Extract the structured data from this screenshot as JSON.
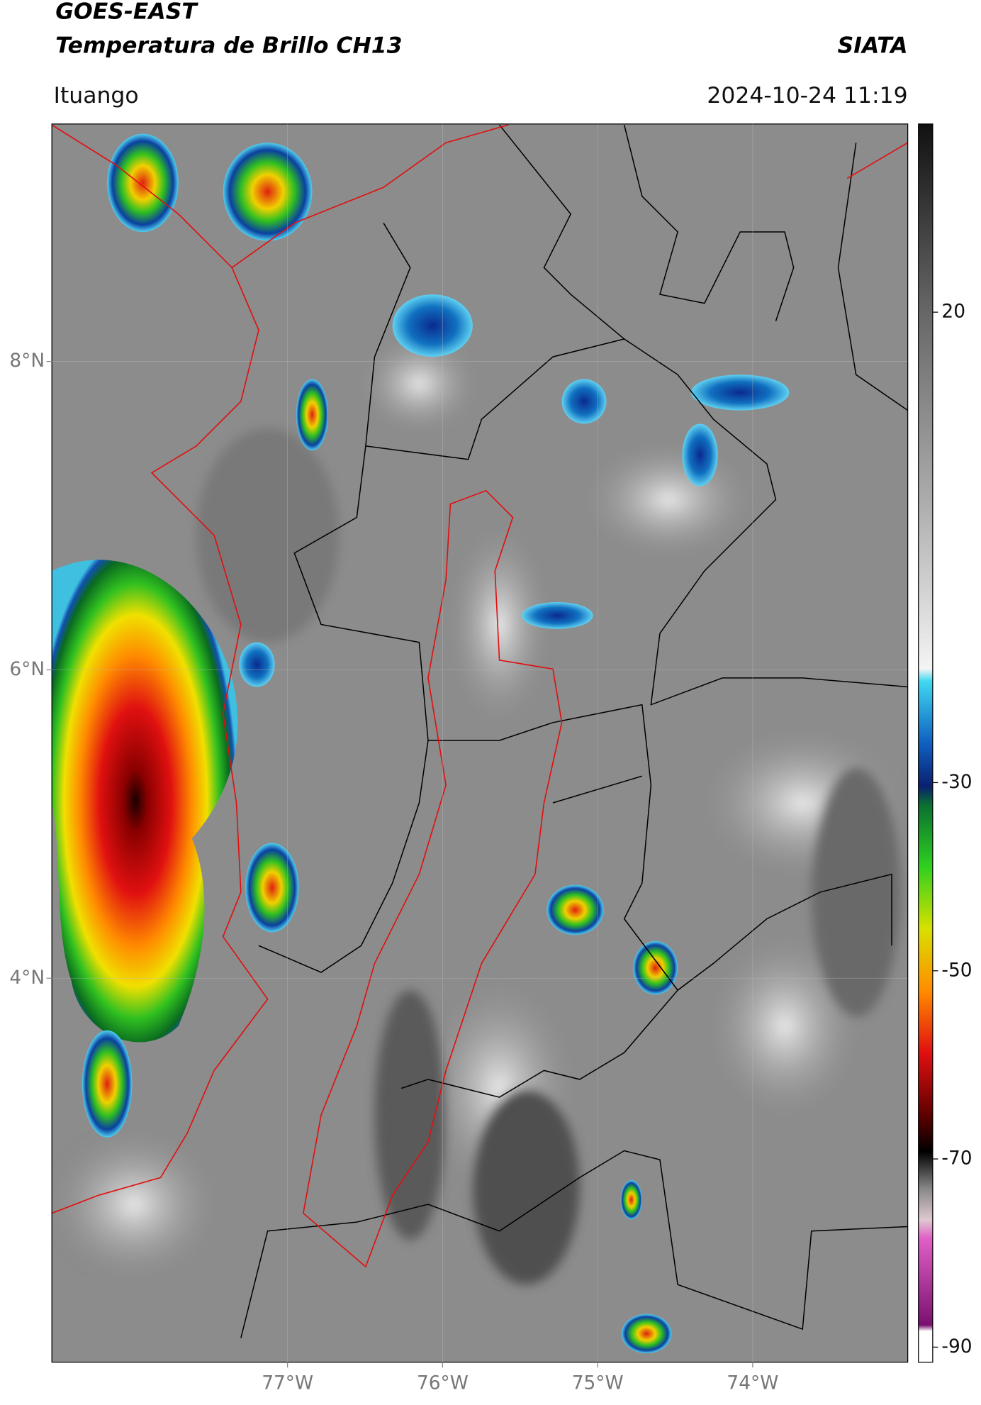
{
  "header": {
    "title": "GOES-EAST",
    "subtitle": "Temperatura de Brillo CH13",
    "brand": "SIATA",
    "location": "Ituango",
    "timestamp": "2024-10-24 11:19"
  },
  "map": {
    "xlim": [
      -78.52,
      -73.0
    ],
    "ylim": [
      1.51,
      9.54
    ],
    "xticks": [
      {
        "value": -77,
        "label": "77°W"
      },
      {
        "value": -76,
        "label": "76°W"
      },
      {
        "value": -75,
        "label": "75°W"
      },
      {
        "value": -74,
        "label": "74°W"
      }
    ],
    "yticks": [
      {
        "value": 8,
        "label": "8°N"
      },
      {
        "value": 6,
        "label": "6°N"
      },
      {
        "value": 4,
        "label": "4°N"
      }
    ]
  },
  "colorbar": {
    "lim": [
      -91.6,
      40
    ],
    "ticks": [
      20,
      -30,
      -50,
      -70,
      -90
    ]
  }
}
